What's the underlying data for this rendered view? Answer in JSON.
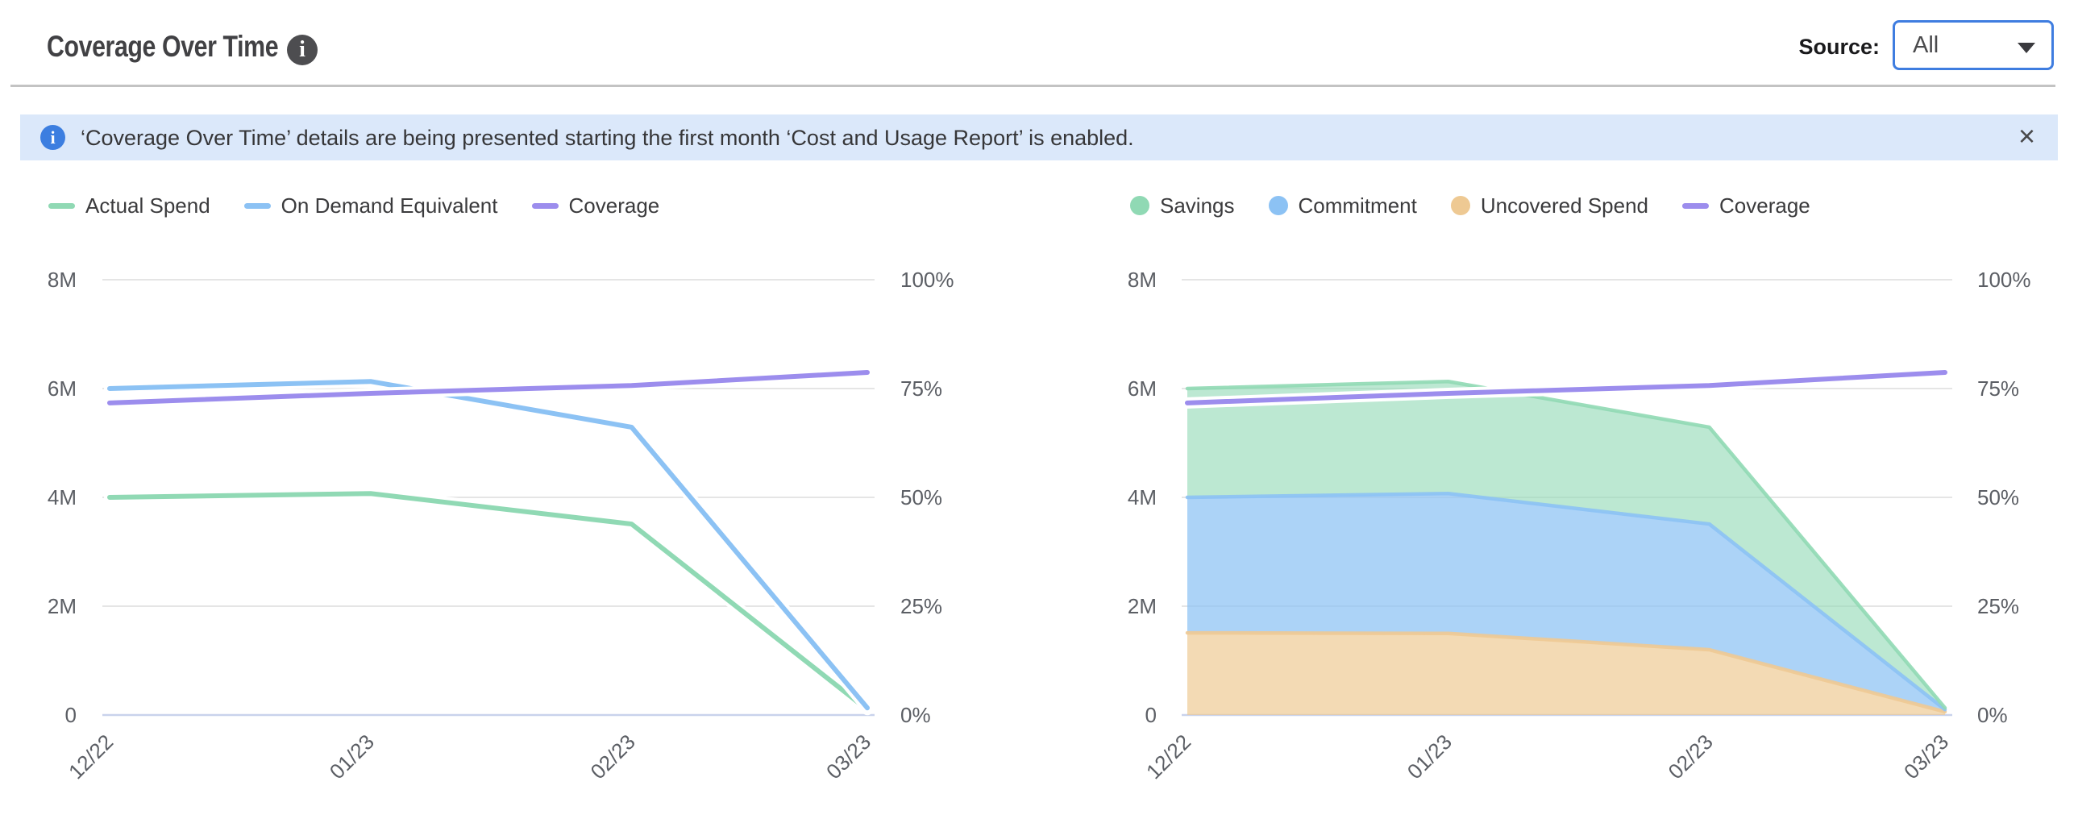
{
  "header": {
    "title": "Coverage Over Time",
    "info_icon": "i",
    "source_label": "Source:",
    "source_value": "All"
  },
  "banner": {
    "icon": "i",
    "text": "‘Coverage Over Time’ details are being presented starting the first month ‘Cost and Usage Report’ is enabled.",
    "close": "×"
  },
  "chart_data": [
    {
      "name": "coverage-lines-chart",
      "type": "line",
      "categories": [
        "12/22",
        "01/23",
        "02/23",
        "03/23"
      ],
      "grid": true,
      "legend_position": "top",
      "yticks_left": [
        "0",
        "2M",
        "4M",
        "6M",
        "8M"
      ],
      "yticks_right": [
        "0%",
        "25%",
        "50%",
        "75%",
        "100%"
      ],
      "ylim_left": [
        0,
        8000000
      ],
      "ylim_right": [
        0,
        100
      ],
      "series": [
        {
          "name": "Actual Spend",
          "kind": "line",
          "marker": "line",
          "color": "#90d9b4",
          "axis": "left",
          "values": [
            4000000,
            4070000,
            3510000,
            100000
          ]
        },
        {
          "name": "On Demand Equivalent",
          "kind": "line",
          "marker": "line",
          "color": "#8cc2f4",
          "axis": "left",
          "values": [
            6000000,
            6130000,
            5290000,
            130000
          ]
        },
        {
          "name": "Coverage",
          "kind": "line",
          "marker": "line",
          "color": "#9c8ded",
          "axis": "right",
          "values": [
            71.7,
            73.9,
            75.7,
            78.7
          ]
        }
      ],
      "legend_order": [
        0,
        1,
        2
      ]
    },
    {
      "name": "coverage-stacked-area-chart",
      "type": "area",
      "categories": [
        "12/22",
        "01/23",
        "02/23",
        "03/23"
      ],
      "grid": true,
      "legend_position": "top",
      "yticks_left": [
        "0",
        "2M",
        "4M",
        "6M",
        "8M"
      ],
      "yticks_right": [
        "0%",
        "25%",
        "50%",
        "75%",
        "100%"
      ],
      "ylim_left": [
        0,
        8000000
      ],
      "ylim_right": [
        0,
        100
      ],
      "series": [
        {
          "name": "Uncovered Spend",
          "kind": "area",
          "marker": "dot",
          "color": "#eec993",
          "fill": "rgba(238,201,145,0.68)",
          "axis": "left",
          "values": [
            1510000,
            1500000,
            1200000,
            60000
          ]
        },
        {
          "name": "Commitment",
          "kind": "area",
          "marker": "dot",
          "color": "#8cc2f4",
          "fill": "rgba(140,194,244,0.72)",
          "axis": "left",
          "values": [
            2490000,
            2570000,
            2310000,
            40000
          ]
        },
        {
          "name": "Savings",
          "kind": "area",
          "marker": "dot",
          "color": "#90d9b4",
          "fill": "rgba(144,217,180,0.6)",
          "axis": "left",
          "values": [
            2000000,
            2060000,
            1780000,
            30000
          ]
        },
        {
          "name": "Coverage",
          "kind": "line",
          "marker": "line",
          "color": "#9c8ded",
          "axis": "right",
          "values": [
            71.7,
            73.9,
            75.7,
            78.7
          ]
        }
      ],
      "legend_order": [
        2,
        1,
        0,
        3
      ]
    }
  ],
  "colors": {
    "grid": "#e5e5e5",
    "axis_line": "#c9d3ec",
    "axis_text": "#5b5e64",
    "legend_text": "#3b3b3d",
    "banner_bg": "#dbe8fa",
    "banner_icon_bg": "#3c7ee0",
    "select_border": "#3f7de0",
    "divider": "#c3c3c3",
    "title_text": "#414144"
  }
}
